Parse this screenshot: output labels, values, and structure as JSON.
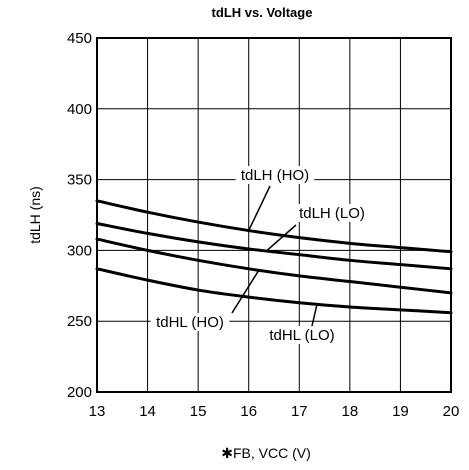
{
  "chart_data": {
    "type": "line",
    "title": "tdLH vs. Voltage",
    "xlabel": "✱FB, VCC (V)",
    "ylabel": "tdLH (ns)",
    "xlim": [
      13,
      20
    ],
    "ylim": [
      200,
      450
    ],
    "xticks": [
      13,
      14,
      15,
      16,
      17,
      18,
      19,
      20
    ],
    "yticks": [
      200,
      250,
      300,
      350,
      400,
      450
    ],
    "grid": true,
    "legend": "none",
    "series": [
      {
        "name": "tdLH (HO)",
        "x": [
          13,
          14,
          15,
          16,
          17,
          18,
          19,
          20
        ],
        "y": [
          335,
          327,
          320,
          314,
          309,
          305,
          302,
          299
        ]
      },
      {
        "name": "tdLH (LO)",
        "x": [
          13,
          14,
          15,
          16,
          17,
          18,
          19,
          20
        ],
        "y": [
          319,
          312,
          306,
          301,
          297,
          293,
          290,
          287
        ]
      },
      {
        "name": "tdHL (HO)",
        "x": [
          13,
          14,
          15,
          16,
          17,
          18,
          19,
          20
        ],
        "y": [
          308,
          300,
          293,
          287,
          282,
          278,
          274,
          270
        ]
      },
      {
        "name": "tdHL (LO)",
        "x": [
          13,
          14,
          15,
          16,
          17,
          18,
          19,
          20
        ],
        "y": [
          287,
          279,
          272,
          267,
          263,
          260,
          258,
          256
        ]
      }
    ]
  }
}
